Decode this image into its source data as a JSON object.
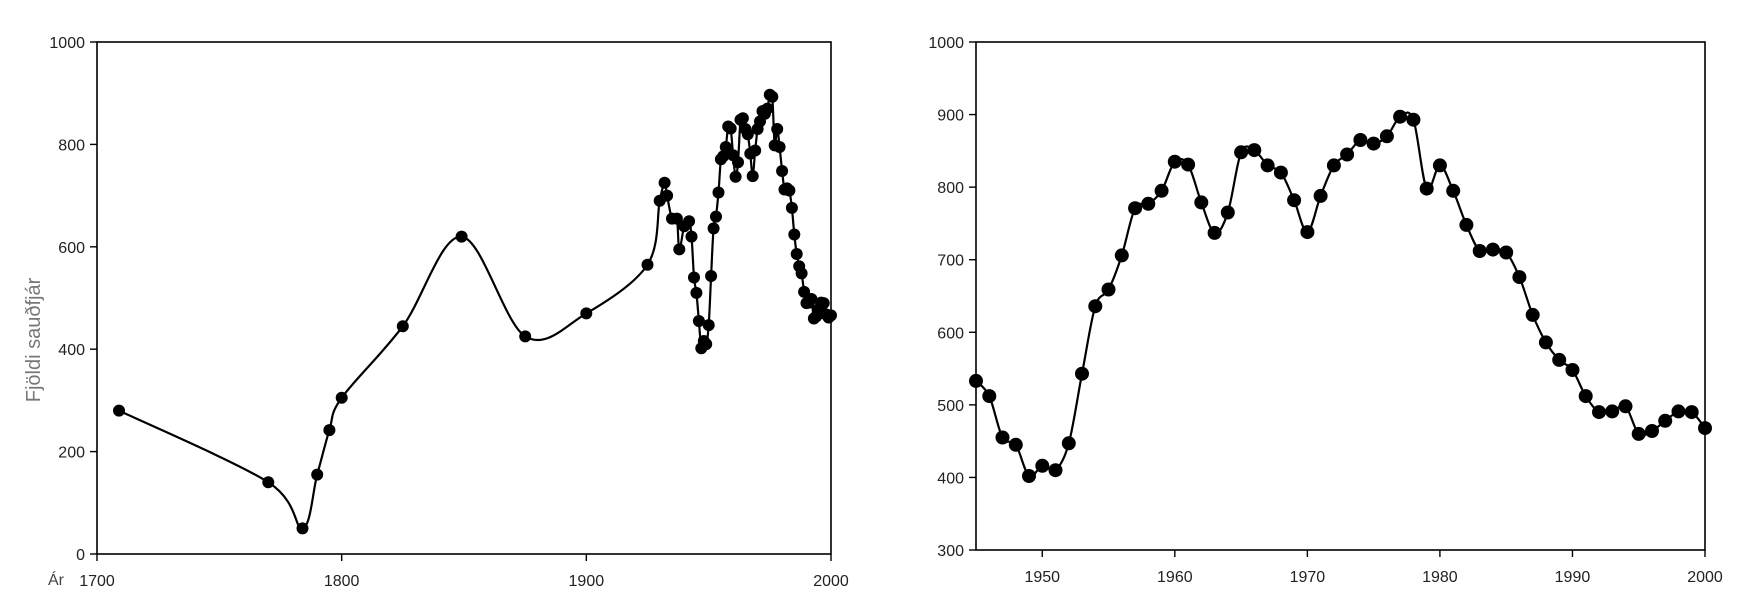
{
  "chart_data": [
    {
      "type": "line",
      "ylabel": "Fjöldi sauðfjár",
      "xlabel": "Ár",
      "xlim": [
        1700,
        2000
      ],
      "ylim": [
        0,
        1000
      ],
      "x_ticks": [
        "1700",
        "1800",
        "1900",
        "2000"
      ],
      "y_ticks": [
        "0",
        "200",
        "400",
        "600",
        "800",
        "1000"
      ],
      "grid": false,
      "series": [
        {
          "x": [
            1709,
            1770,
            1784,
            1790,
            1795,
            1800,
            1825,
            1849,
            1875,
            1900,
            1925,
            1930,
            1932,
            1933,
            1935,
            1937,
            1938,
            1940,
            1942,
            1943,
            1944,
            1945,
            1946,
            1947,
            1948,
            1949,
            1950,
            1951,
            1952,
            1953,
            1954,
            1955,
            1956,
            1957,
            1958,
            1959,
            1960,
            1961,
            1962,
            1963,
            1964,
            1965,
            1966,
            1967,
            1968,
            1969,
            1970,
            1971,
            1972,
            1973,
            1974,
            1975,
            1976,
            1977,
            1978,
            1979,
            1980,
            1981,
            1982,
            1983,
            1984,
            1985,
            1986,
            1987,
            1988,
            1989,
            1990,
            1991,
            1992,
            1993,
            1994,
            1995,
            1996,
            1997,
            1998,
            1999,
            2000
          ],
          "y": [
            280,
            140,
            50,
            155,
            242,
            305,
            445,
            620,
            425,
            470,
            565,
            690,
            725,
            700,
            655,
            655,
            595,
            640,
            650,
            620,
            540,
            510,
            455,
            402,
            416,
            410,
            447,
            543,
            636,
            659,
            706,
            771,
            777,
            795,
            835,
            831,
            779,
            737,
            765,
            848,
            851,
            830,
            820,
            782,
            738,
            788,
            830,
            845,
            865,
            860,
            870,
            897,
            893,
            798,
            830,
            795,
            748,
            712,
            714,
            710,
            676,
            624,
            586,
            562,
            548,
            512,
            490,
            491,
            498,
            460,
            464,
            478,
            491,
            490,
            468,
            462,
            466
          ]
        }
      ]
    },
    {
      "type": "line",
      "xlim": [
        1945,
        2000
      ],
      "ylim": [
        300,
        1000
      ],
      "x_ticks": [
        "1950",
        "1960",
        "1970",
        "1980",
        "1990",
        "2000"
      ],
      "y_ticks": [
        "300",
        "400",
        "500",
        "600",
        "700",
        "800",
        "900",
        "1000"
      ],
      "grid": false,
      "series": [
        {
          "x": [
            1945,
            1946,
            1947,
            1948,
            1949,
            1950,
            1951,
            1952,
            1953,
            1954,
            1955,
            1956,
            1957,
            1958,
            1959,
            1960,
            1961,
            1962,
            1963,
            1964,
            1965,
            1966,
            1967,
            1968,
            1969,
            1970,
            1971,
            1972,
            1973,
            1974,
            1975,
            1976,
            1977,
            1978,
            1979,
            1980,
            1981,
            1982,
            1983,
            1984,
            1985,
            1986,
            1987,
            1988,
            1989,
            1990,
            1991,
            1992,
            1993,
            1994,
            1995,
            1996,
            1997,
            1998,
            1999,
            2000
          ],
          "y": [
            533,
            512,
            455,
            445,
            402,
            416,
            410,
            447,
            543,
            636,
            659,
            706,
            771,
            777,
            795,
            835,
            831,
            779,
            737,
            765,
            848,
            851,
            830,
            820,
            782,
            738,
            788,
            830,
            845,
            865,
            860,
            870,
            897,
            893,
            798,
            830,
            795,
            748,
            712,
            714,
            710,
            676,
            624,
            586,
            562,
            548,
            512,
            490,
            491,
            498,
            460,
            464,
            478,
            491,
            490,
            468
          ]
        }
      ]
    }
  ]
}
